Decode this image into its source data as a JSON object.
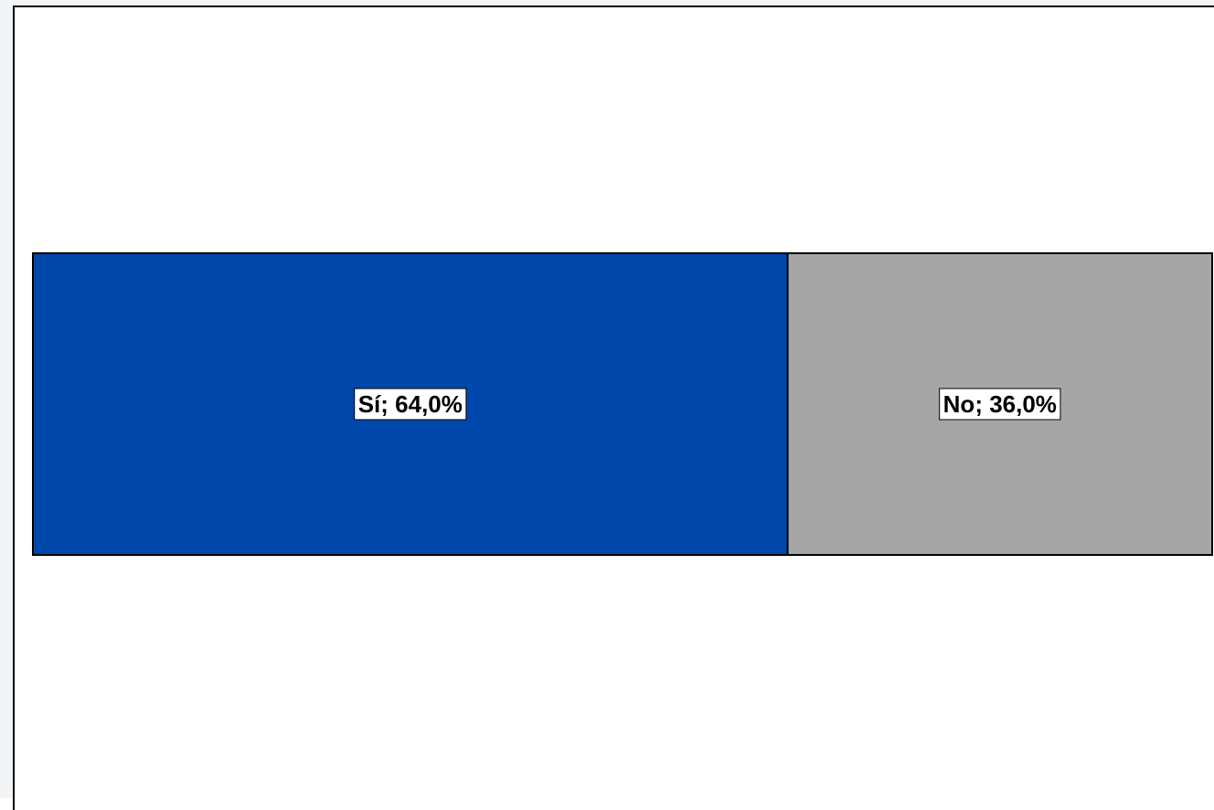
{
  "chart_data": {
    "type": "bar",
    "orientation": "horizontal",
    "stacked": true,
    "percent_stacked": true,
    "categories": [
      ""
    ],
    "series": [
      {
        "name": "Sí",
        "values": [
          64.0
        ],
        "color": "#0047AB",
        "label": "Sí; 64,0%"
      },
      {
        "name": "No",
        "values": [
          36.0
        ],
        "color": "#A6A6A6",
        "label": "No; 36,0%"
      }
    ],
    "title": "",
    "xlabel": "",
    "ylabel": "",
    "xlim": [
      0,
      100
    ],
    "grid": false,
    "legend": "none"
  }
}
